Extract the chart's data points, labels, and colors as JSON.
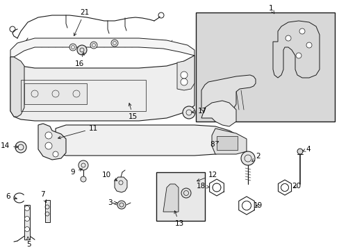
{
  "bg_color": "#ffffff",
  "line_color": "#1a1a1a",
  "text_color": "#000000",
  "label_fontsize": 7.5,
  "figsize": [
    4.89,
    3.6
  ],
  "dpi": 100,
  "box_color": "#d8d8d8",
  "parts_color": "#f2f2f2",
  "shadow_color": "#cccccc"
}
